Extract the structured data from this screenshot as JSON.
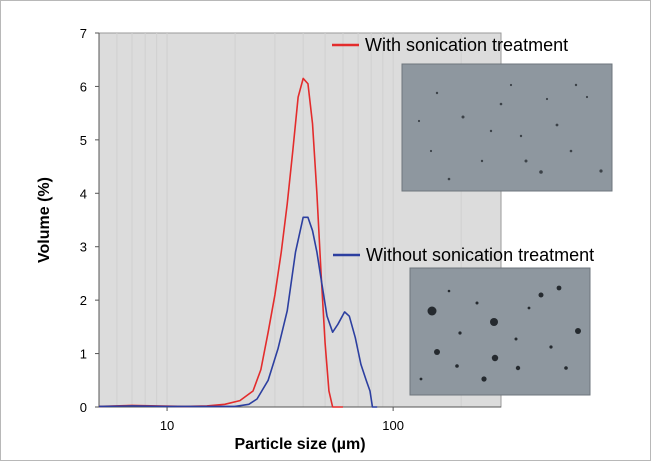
{
  "chart_data": {
    "type": "line",
    "xlabel": "Particle size (µm)",
    "ylabel": "Volume (%)",
    "x_scale": "log",
    "xlim": [
      5,
      300
    ],
    "ylim": [
      0,
      7
    ],
    "x_ticks": [
      10,
      100
    ],
    "x_tick_labels": [
      "10",
      "100"
    ],
    "y_ticks": [
      0,
      1,
      2,
      3,
      4,
      5,
      6,
      7
    ],
    "y_tick_labels": [
      "0",
      "1",
      "2",
      "3",
      "4",
      "5",
      "6",
      "7"
    ],
    "grid": "vertical, light",
    "legend_position": "right",
    "series": [
      {
        "name": "With sonication treatment",
        "color": "#e32c2c",
        "points": [
          [
            5,
            0.01
          ],
          [
            7,
            0.03
          ],
          [
            9,
            0.02
          ],
          [
            12,
            0.01
          ],
          [
            15,
            0.02
          ],
          [
            18,
            0.05
          ],
          [
            21,
            0.12
          ],
          [
            24,
            0.3
          ],
          [
            26,
            0.7
          ],
          [
            28,
            1.4
          ],
          [
            30,
            2.1
          ],
          [
            32,
            2.9
          ],
          [
            34,
            3.8
          ],
          [
            36,
            4.8
          ],
          [
            38,
            5.8
          ],
          [
            40,
            6.15
          ],
          [
            42,
            6.05
          ],
          [
            44,
            5.3
          ],
          [
            46,
            4.0
          ],
          [
            48,
            2.5
          ],
          [
            50,
            1.2
          ],
          [
            52,
            0.3
          ],
          [
            54,
            0.0
          ],
          [
            60,
            0.0
          ]
        ]
      },
      {
        "name": "Without sonication treatment",
        "color": "#2c3fa0",
        "points": [
          [
            5,
            0.01
          ],
          [
            7,
            0.02
          ],
          [
            10,
            0.01
          ],
          [
            20,
            0.01
          ],
          [
            23,
            0.05
          ],
          [
            25,
            0.15
          ],
          [
            28,
            0.5
          ],
          [
            31,
            1.1
          ],
          [
            34,
            1.8
          ],
          [
            37,
            2.9
          ],
          [
            40,
            3.55
          ],
          [
            42,
            3.55
          ],
          [
            44,
            3.3
          ],
          [
            46,
            2.9
          ],
          [
            48,
            2.4
          ],
          [
            51,
            1.7
          ],
          [
            54,
            1.4
          ],
          [
            57,
            1.55
          ],
          [
            61,
            1.78
          ],
          [
            64,
            1.7
          ],
          [
            68,
            1.3
          ],
          [
            72,
            0.8
          ],
          [
            76,
            0.5
          ],
          [
            79,
            0.3
          ],
          [
            81,
            0.0
          ],
          [
            85,
            0.0
          ]
        ]
      }
    ]
  }
}
